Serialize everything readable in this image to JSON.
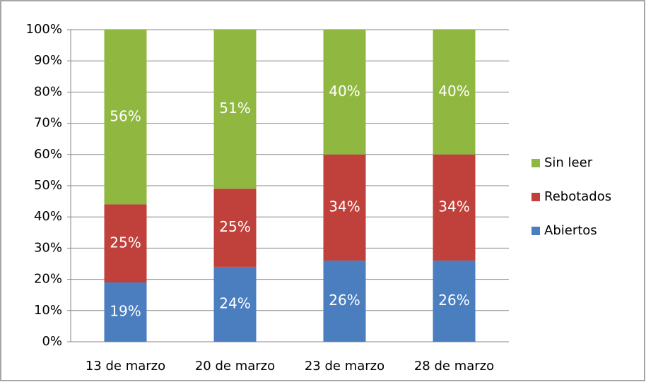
{
  "chart_data": {
    "type": "stacked_bar",
    "categories": [
      "13 de marzo",
      "20 de marzo",
      "23 de marzo",
      "28 de marzo"
    ],
    "series": [
      {
        "name": "Abiertos",
        "color": "#4a7ebf",
        "values": [
          19,
          24,
          26,
          26
        ],
        "value_labels": [
          "19%",
          "24%",
          "26%",
          "26%"
        ]
      },
      {
        "name": "Rebotados",
        "color": "#c0403b",
        "values": [
          25,
          25,
          34,
          34
        ],
        "value_labels": [
          "25%",
          "25%",
          "34%",
          "34%"
        ]
      },
      {
        "name": "Sin leer",
        "color": "#90b840",
        "values": [
          56,
          51,
          40,
          40
        ],
        "value_labels": [
          "56%",
          "51%",
          "40%",
          "40%"
        ]
      }
    ],
    "ylim": [
      0,
      100
    ],
    "yticks": [
      {
        "value": 0,
        "label": "0%"
      },
      {
        "value": 10,
        "label": "10%"
      },
      {
        "value": 20,
        "label": "20%"
      },
      {
        "value": 30,
        "label": "30%"
      },
      {
        "value": 40,
        "label": "40%"
      },
      {
        "value": 50,
        "label": "50%"
      },
      {
        "value": 60,
        "label": "60%"
      },
      {
        "value": 70,
        "label": "70%"
      },
      {
        "value": 80,
        "label": "80%"
      },
      {
        "value": 90,
        "label": "90%"
      },
      {
        "value": 100,
        "label": "100%"
      }
    ],
    "grid": true,
    "legend": "right"
  }
}
